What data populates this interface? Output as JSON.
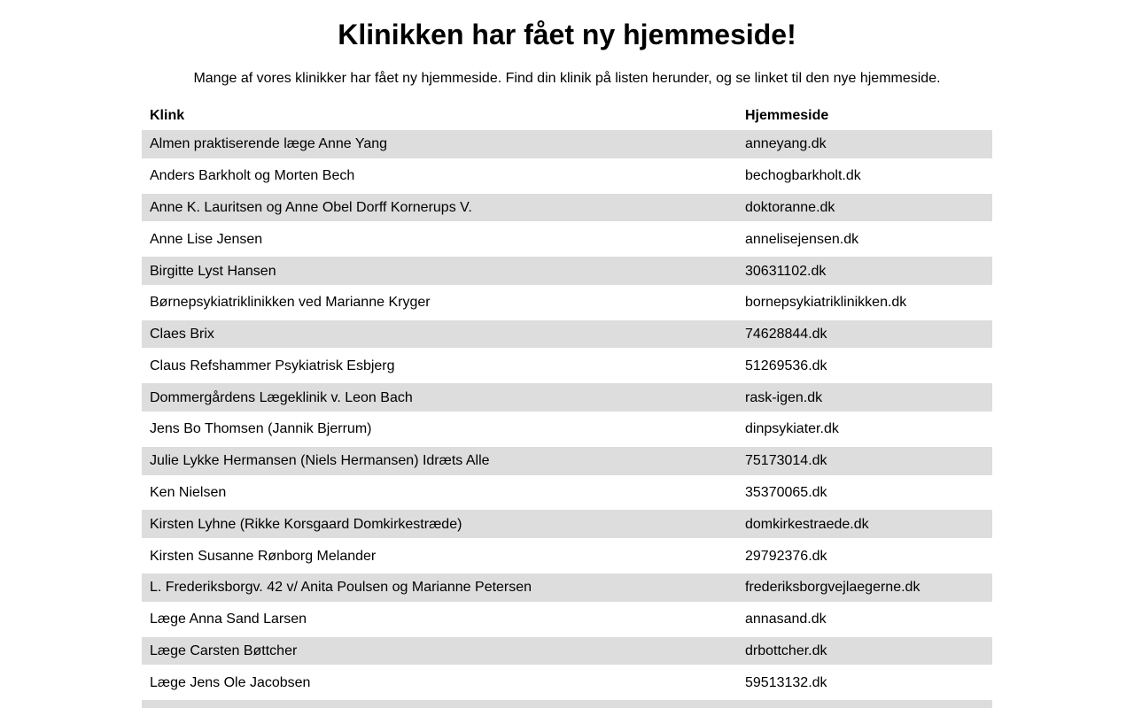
{
  "header": {
    "title": "Klinikken har fået ny hjemmeside!",
    "subtitle": "Mange af vores klinikker har fået ny hjemmeside. Find din klinik på listen herunder, og se linket til den nye hjemmeside."
  },
  "table": {
    "columns": [
      "Klink",
      "Hjemmeside"
    ],
    "rows": [
      {
        "klink": "Almen praktiserende læge Anne Yang",
        "hjemmeside": "anneyang.dk"
      },
      {
        "klink": "Anders Barkholt og Morten Bech",
        "hjemmeside": "bechogbarkholt.dk"
      },
      {
        "klink": "Anne K. Lauritsen og Anne Obel Dorff Kornerups V.",
        "hjemmeside": "doktoranne.dk"
      },
      {
        "klink": "Anne Lise Jensen",
        "hjemmeside": "annelisejensen.dk"
      },
      {
        "klink": "Birgitte Lyst Hansen",
        "hjemmeside": "30631102.dk"
      },
      {
        "klink": "Børnepsykiatriklinikken ved Marianne Kryger",
        "hjemmeside": "bornepsykiatriklinikken.dk"
      },
      {
        "klink": "Claes Brix",
        "hjemmeside": "74628844.dk"
      },
      {
        "klink": "Claus Refshammer Psykiatrisk Esbjerg",
        "hjemmeside": "51269536.dk"
      },
      {
        "klink": "Dommergårdens Lægeklinik v. Leon Bach",
        "hjemmeside": "rask-igen.dk"
      },
      {
        "klink": "Jens Bo Thomsen (Jannik Bjerrum)",
        "hjemmeside": "dinpsykiater.dk"
      },
      {
        "klink": "Julie Lykke Hermansen (Niels Hermansen) Idræts Alle",
        "hjemmeside": "75173014.dk"
      },
      {
        "klink": "Ken Nielsen",
        "hjemmeside": "35370065.dk"
      },
      {
        "klink": "Kirsten Lyhne (Rikke Korsgaard Domkirkestræde)",
        "hjemmeside": "domkirkestraede.dk"
      },
      {
        "klink": "Kirsten Susanne Rønborg Melander",
        "hjemmeside": "29792376.dk"
      },
      {
        "klink": "L. Frederiksborgv. 42 v/ Anita Poulsen og Marianne Petersen",
        "hjemmeside": "frederiksborgvejlaegerne.dk"
      },
      {
        "klink": "Læge Anna Sand Larsen",
        "hjemmeside": "annasand.dk"
      },
      {
        "klink": "Læge Carsten Bøttcher",
        "hjemmeside": "drbottcher.dk"
      },
      {
        "klink": "Læge Jens Ole Jacobsen",
        "hjemmeside": "59513132.dk"
      }
    ],
    "partial_row_visible": true
  },
  "colors": {
    "stripe": "#dddddd",
    "background": "#ffffff",
    "text": "#000000"
  }
}
